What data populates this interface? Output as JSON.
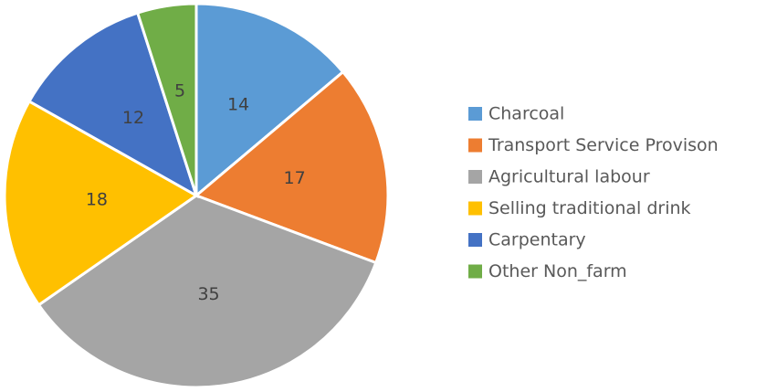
{
  "chart_data": {
    "type": "pie",
    "categories": [
      "Charcoal",
      "Transport Service Provison",
      "Agricultural labour",
      "Selling traditional drink",
      "Carpentary",
      "Other Non_farm"
    ],
    "values": [
      14,
      17,
      35,
      18,
      12,
      5
    ],
    "colors": [
      "#5b9bd5",
      "#ed7d31",
      "#a5a5a5",
      "#ffc000",
      "#4472c4",
      "#70ad47"
    ],
    "legend": "right"
  }
}
